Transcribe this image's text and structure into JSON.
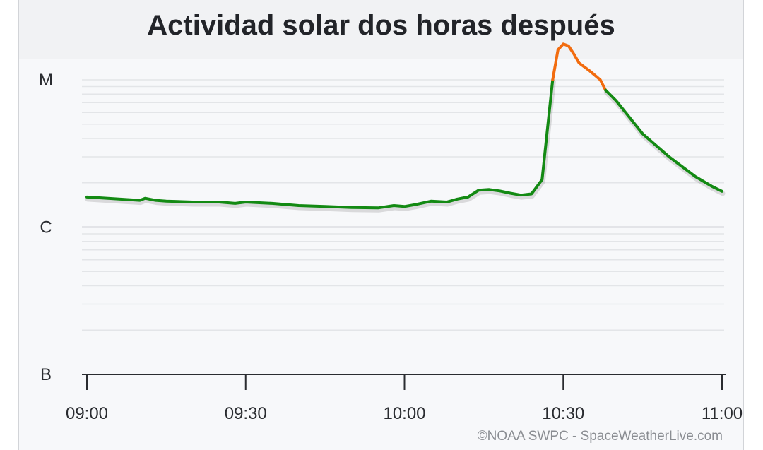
{
  "chart_data": {
    "type": "line",
    "title": "Actividad solar dos horas después",
    "xlabel": "",
    "ylabel": "",
    "x_tick_labels": [
      "09:00",
      "09:30",
      "10:00",
      "10:30",
      "11:00"
    ],
    "y_tick_labels": [
      "B",
      "C",
      "M"
    ],
    "y_scale": "log",
    "ylim_class": [
      "B",
      "M"
    ],
    "grid": true,
    "legend": "none",
    "series": [
      {
        "color_below_c": "#138a13",
        "color_at_or_above_c": "#f26c0f",
        "x": [
          "09:00",
          "09:05",
          "09:10",
          "09:11",
          "09:13",
          "09:15",
          "09:20",
          "09:25",
          "09:28",
          "09:30",
          "09:35",
          "09:40",
          "09:45",
          "09:50",
          "09:55",
          "09:58",
          "10:00",
          "10:02",
          "10:05",
          "10:08",
          "10:10",
          "10:12",
          "10:14",
          "10:16",
          "10:18",
          "10:20",
          "10:22",
          "10:24",
          "10:26",
          "10:28",
          "10:29",
          "10:30",
          "10:31",
          "10:32",
          "10:33",
          "10:35",
          "10:37",
          "10:38",
          "10:40",
          "10:45",
          "10:50",
          "10:55",
          "10:58",
          "11:00"
        ],
        "flux_wm2": [
          1.6e-06,
          1.56e-06,
          1.52e-06,
          1.57e-06,
          1.52e-06,
          1.5e-06,
          1.48e-06,
          1.48e-06,
          1.45e-06,
          1.48e-06,
          1.45e-06,
          1.4e-06,
          1.38e-06,
          1.36e-06,
          1.35e-06,
          1.4e-06,
          1.38e-06,
          1.42e-06,
          1.5e-06,
          1.48e-06,
          1.55e-06,
          1.6e-06,
          1.78e-06,
          1.8e-06,
          1.76e-06,
          1.7e-06,
          1.65e-06,
          1.68e-06,
          2.1e-06,
          1e-05,
          1.6e-05,
          1.75e-05,
          1.7e-05,
          1.5e-05,
          1.3e-05,
          1.15e-05,
          1e-05,
          8.5e-06,
          7.2e-06,
          4.3e-06,
          3e-06,
          2.2e-06,
          1.9e-06,
          1.75e-06
        ]
      }
    ],
    "color_line_normal": "#138a13",
    "color_line_flare": "#f26c0f",
    "credit": "©NOAA SWPC - SpaceWeatherLive.com"
  }
}
